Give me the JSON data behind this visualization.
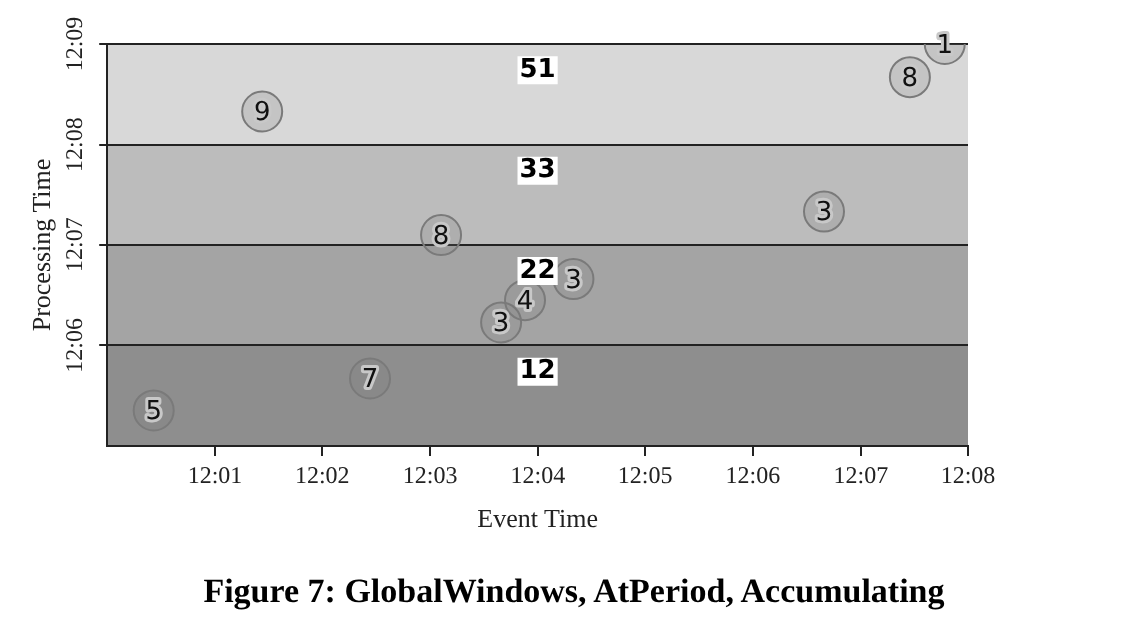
{
  "chart_data": {
    "type": "scatter",
    "xlabel": "Event Time",
    "ylabel": "Processing Time",
    "annotations": [
      "Figure 7: GlobalWindows, AtPeriod, Accumulating",
      {
        "text": "5",
        "x": 12.0072,
        "y": 12.0892
      },
      {
        "text": "7",
        "x": 12.0407,
        "y": 12.0945
      },
      {
        "text": "3",
        "x": 12.061,
        "y": 12.1038
      },
      {
        "text": "4",
        "x": 12.0647,
        "y": 12.1075
      },
      {
        "text": "3",
        "x": 12.0722,
        "y": 12.111
      },
      {
        "text": "8",
        "x": 12.0517,
        "y": 12.1183
      },
      {
        "text": "3",
        "x": 12.111,
        "y": 12.1222
      },
      {
        "text": "9",
        "x": 12.024,
        "y": 12.1388
      },
      {
        "text": "8",
        "x": 12.1243,
        "y": 12.1445
      },
      {
        "text": "1",
        "x": 12.1297,
        "y": 12.15
      }
    ],
    "xlim": [
      12.0,
      12.1333
    ],
    "ylim": [
      12.0833,
      12.15
    ],
    "xticks": [
      {
        "value": 12.0167,
        "label": "12:01"
      },
      {
        "value": 12.0333,
        "label": "12:02"
      },
      {
        "value": 12.05,
        "label": "12:03"
      },
      {
        "value": 12.0667,
        "label": "12:04"
      },
      {
        "value": 12.0833,
        "label": "12:05"
      },
      {
        "value": 12.1,
        "label": "12:06"
      },
      {
        "value": 12.1167,
        "label": "12:07"
      },
      {
        "value": 12.1333,
        "label": "12:08"
      }
    ],
    "yticks": [
      {
        "value": 12.1,
        "label": "12:06"
      },
      {
        "value": 12.1167,
        "label": "12:07"
      },
      {
        "value": 12.1333,
        "label": "12:08"
      },
      {
        "value": 12.15,
        "label": "12:09"
      }
    ],
    "bands": [
      {
        "axis": "y",
        "from": 12.0833,
        "to": 12.1,
        "label": "12",
        "color": "#8e8e8e"
      },
      {
        "axis": "y",
        "from": 12.1,
        "to": 12.1167,
        "label": "22",
        "color": "#a4a4a4"
      },
      {
        "axis": "y",
        "from": 12.1167,
        "to": 12.1333,
        "label": "33",
        "color": "#bcbcbc"
      },
      {
        "axis": "y",
        "from": 12.1333,
        "to": 12.15,
        "label": "51",
        "color": "#d8d8d8"
      }
    ],
    "series": [
      {
        "color": "#7a7a7a",
        "x": [
          12.0072,
          12.0407,
          12.061,
          12.0647,
          12.0722,
          12.0517,
          12.111,
          12.024,
          12.1243,
          12.1297
        ],
        "values": [
          12.0892,
          12.0945,
          12.1038,
          12.1075,
          12.111,
          12.1183,
          12.1222,
          12.1388,
          12.1445,
          12.15
        ]
      }
    ],
    "marker": "circle",
    "grid": "y",
    "legend": false
  }
}
